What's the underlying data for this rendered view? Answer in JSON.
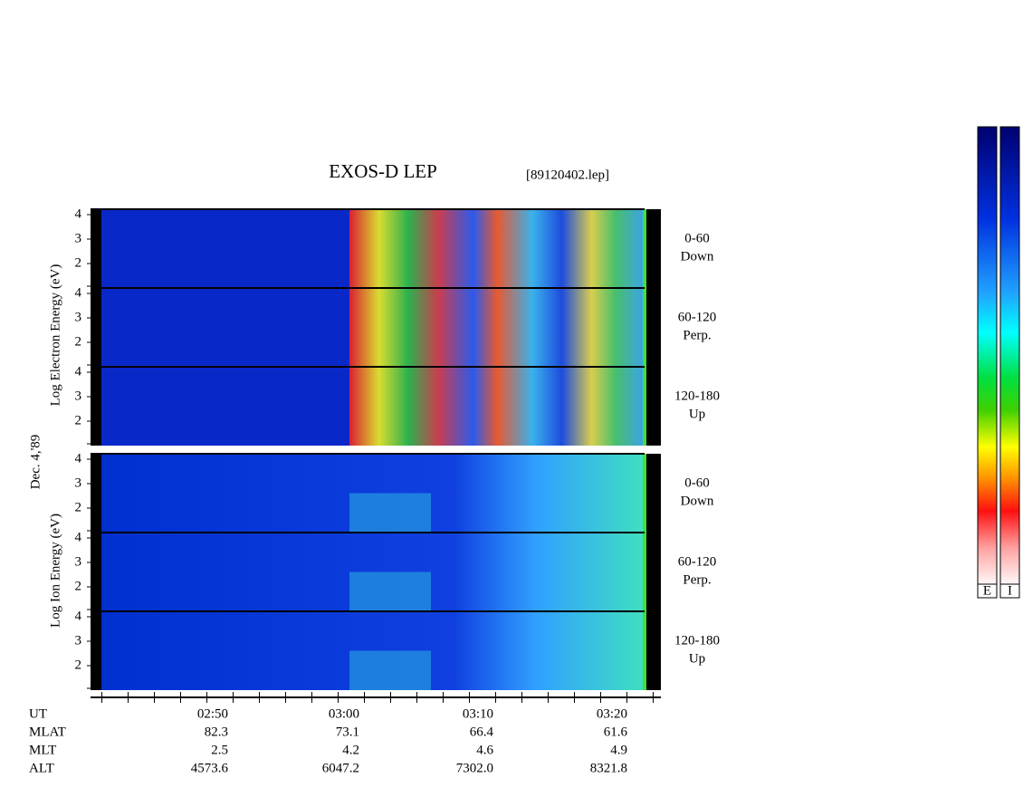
{
  "header": {
    "title": "EXOS-D LEP",
    "file": "[89120402.lep]"
  },
  "side_labels": {
    "electron": "Log Electron Energy (eV)",
    "date": "Dec. 4,'89",
    "ion": "Log Ion Energy (eV)"
  },
  "panels": [
    {
      "pitch": "0-60",
      "direction": "Down",
      "yticks": [
        "4",
        "3",
        "2"
      ]
    },
    {
      "pitch": "60-120",
      "direction": "Perp.",
      "yticks": [
        "4",
        "3",
        "2"
      ]
    },
    {
      "pitch": "120-180",
      "direction": "Up",
      "yticks": [
        "4",
        "3",
        "2"
      ]
    },
    {
      "pitch": "0-60",
      "direction": "Down",
      "yticks": [
        "4",
        "3",
        "2"
      ]
    },
    {
      "pitch": "60-120",
      "direction": "Perp.",
      "yticks": [
        "4",
        "3",
        "2"
      ]
    },
    {
      "pitch": "120-180",
      "direction": "Up",
      "yticks": [
        "4",
        "3",
        "2"
      ]
    }
  ],
  "ephemeris": [
    {
      "name": "UT",
      "values": [
        "02:50",
        "03:00",
        "03:10",
        "03:20"
      ]
    },
    {
      "name": "MLAT",
      "values": [
        "82.3",
        "73.1",
        "66.4",
        "61.6"
      ]
    },
    {
      "name": "MLT",
      "values": [
        "2.5",
        "4.2",
        "4.6",
        "4.9"
      ]
    },
    {
      "name": "ALT",
      "values": [
        "4573.6",
        "6047.2",
        "7302.0",
        "8321.8"
      ]
    }
  ],
  "colorbars": [
    "E",
    "I"
  ]
}
